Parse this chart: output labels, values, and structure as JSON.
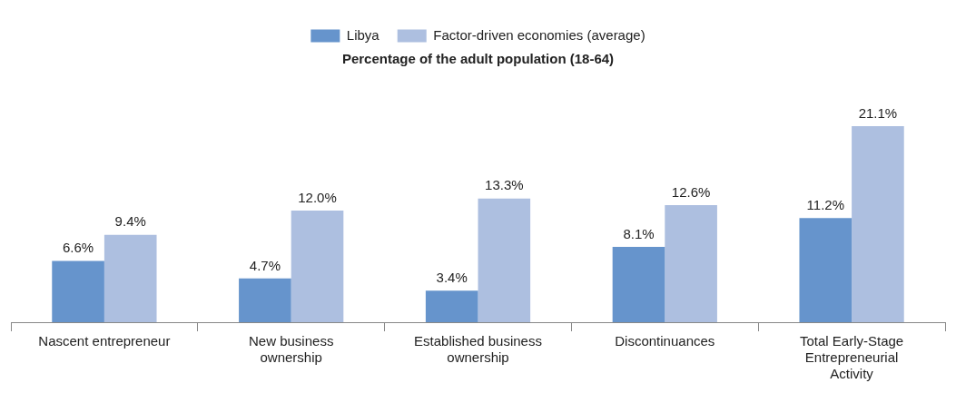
{
  "chart_data": {
    "type": "bar",
    "title": "Percentage of the adult population (18-64)",
    "categories": [
      "Nascent entrepreneur",
      "New business ownership",
      "Established business ownership",
      "Discontinuances",
      "Total Early-Stage Entrepreneurial Activity"
    ],
    "series": [
      {
        "name": "Libya",
        "color": "#6694cc",
        "values": [
          6.6,
          4.7,
          3.4,
          8.1,
          11.2
        ],
        "value_labels": [
          "6.6%",
          "4.7%",
          "3.4%",
          "8.1%",
          "11.2%"
        ]
      },
      {
        "name": "Factor-driven economies (average)",
        "color": "#adbfe0",
        "values": [
          9.4,
          12.0,
          13.3,
          12.6,
          21.1
        ],
        "value_labels": [
          "9.4%",
          "12.0%",
          "13.3%",
          "12.6%",
          "21.1%"
        ]
      }
    ],
    "grid": false,
    "legend": "top"
  }
}
